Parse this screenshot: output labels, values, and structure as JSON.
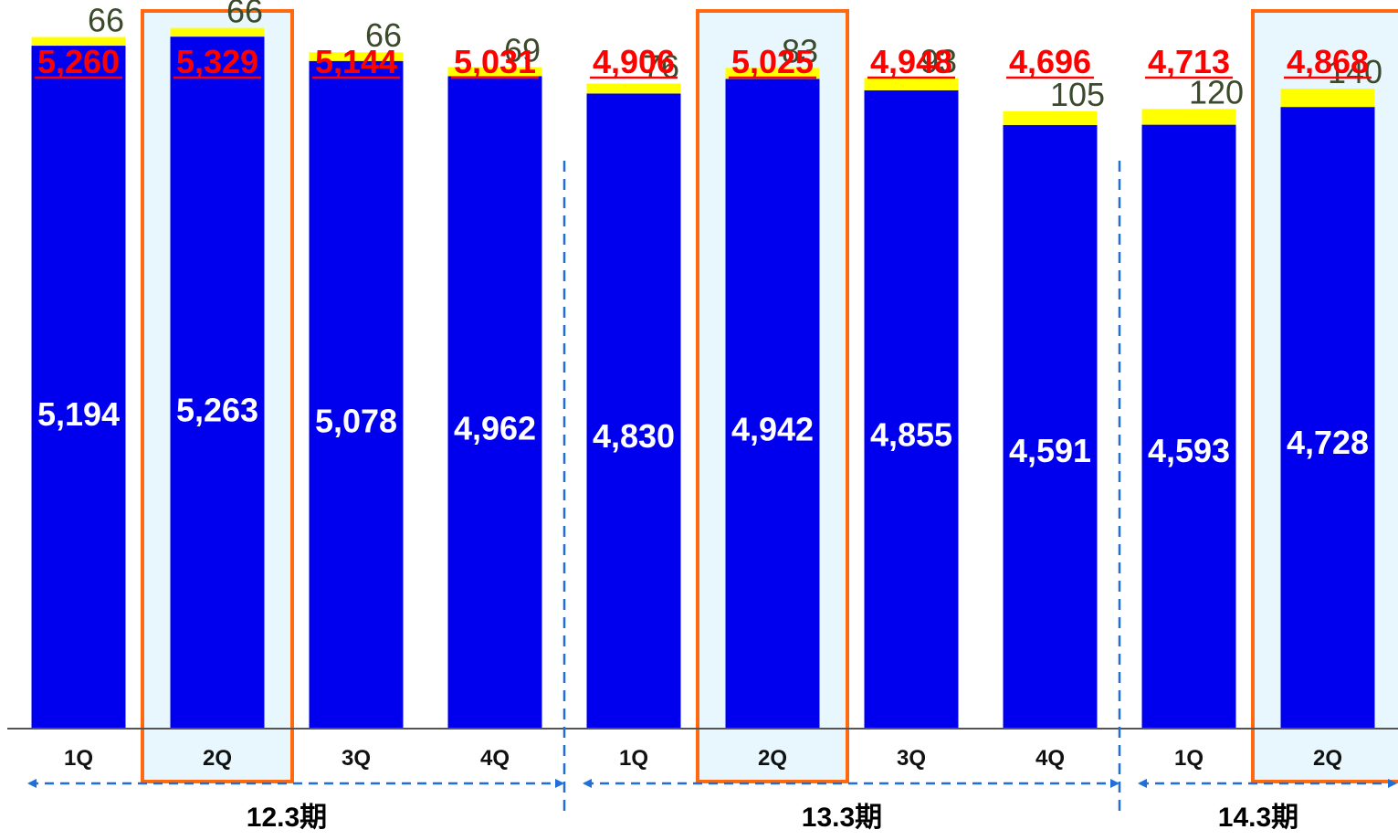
{
  "chart_data": {
    "type": "bar",
    "stacked": true,
    "categories": [
      "1Q",
      "2Q",
      "3Q",
      "4Q",
      "1Q",
      "2Q",
      "3Q",
      "4Q",
      "1Q",
      "2Q"
    ],
    "periods": [
      {
        "label": "12.3期",
        "first": 0,
        "last": 3
      },
      {
        "label": "13.3期",
        "first": 4,
        "last": 7
      },
      {
        "label": "14.3期",
        "first": 8,
        "last": 9
      }
    ],
    "series": [
      {
        "values": [
          5194,
          5263,
          5078,
          4962,
          4830,
          4942,
          4855,
          4591,
          4593,
          4728
        ],
        "labels": [
          "5,194",
          "5,263",
          "5,078",
          "4,962",
          "4,830",
          "4,942",
          "4,855",
          "4,591",
          "4,593",
          "4,728"
        ],
        "color": "#0000ee"
      },
      {
        "values": [
          66,
          66,
          66,
          69,
          76,
          83,
          93,
          105,
          120,
          140
        ],
        "labels": [
          "66",
          "66",
          "66",
          "69",
          "76",
          "83",
          "93",
          "105",
          "120",
          "140"
        ],
        "color": "#ffff00"
      }
    ],
    "totals": [
      5260,
      5329,
      5144,
      5031,
      4906,
      5025,
      4948,
      4696,
      4713,
      4868
    ],
    "total_labels": [
      "5,260",
      "5,329",
      "5,144",
      "5,031",
      "4,906",
      "5,025",
      "4,948",
      "4,696",
      "4,713",
      "4,868"
    ],
    "highlighted": [
      1,
      5,
      9
    ],
    "colors": {
      "total_label": "#ff0000",
      "highlight_frame": "#ff6a10",
      "highlight_fill": "#e8f7fd",
      "divider": "#1e6fd9",
      "axis": "#555555"
    },
    "ylim": [
      0,
      5500
    ],
    "grid": false,
    "legend": "none"
  }
}
